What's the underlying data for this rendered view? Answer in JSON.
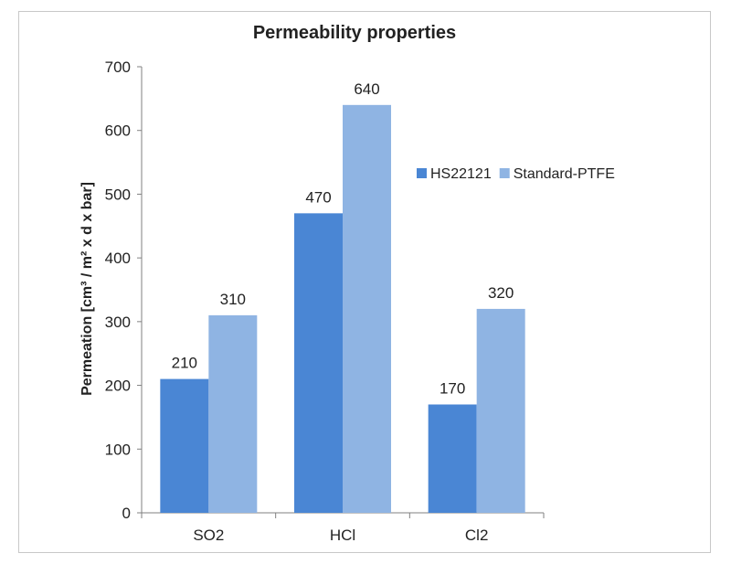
{
  "chart_data": {
    "type": "bar",
    "title": "Permeability properties",
    "xlabel": "",
    "ylabel": "Permeation [cm³ / m² x d x bar]",
    "categories": [
      "SO2",
      "HCl",
      "Cl2"
    ],
    "series": [
      {
        "name": "HS22121",
        "values": [
          210,
          470,
          170
        ],
        "color": "#4a86d4"
      },
      {
        "name": "Standard-PTFE",
        "values": [
          310,
          640,
          320
        ],
        "color": "#8fb4e3"
      }
    ],
    "ylim": [
      0,
      700
    ],
    "yticks": [
      0,
      100,
      200,
      300,
      400,
      500,
      600,
      700
    ],
    "grid": false,
    "legend_position": "right"
  }
}
